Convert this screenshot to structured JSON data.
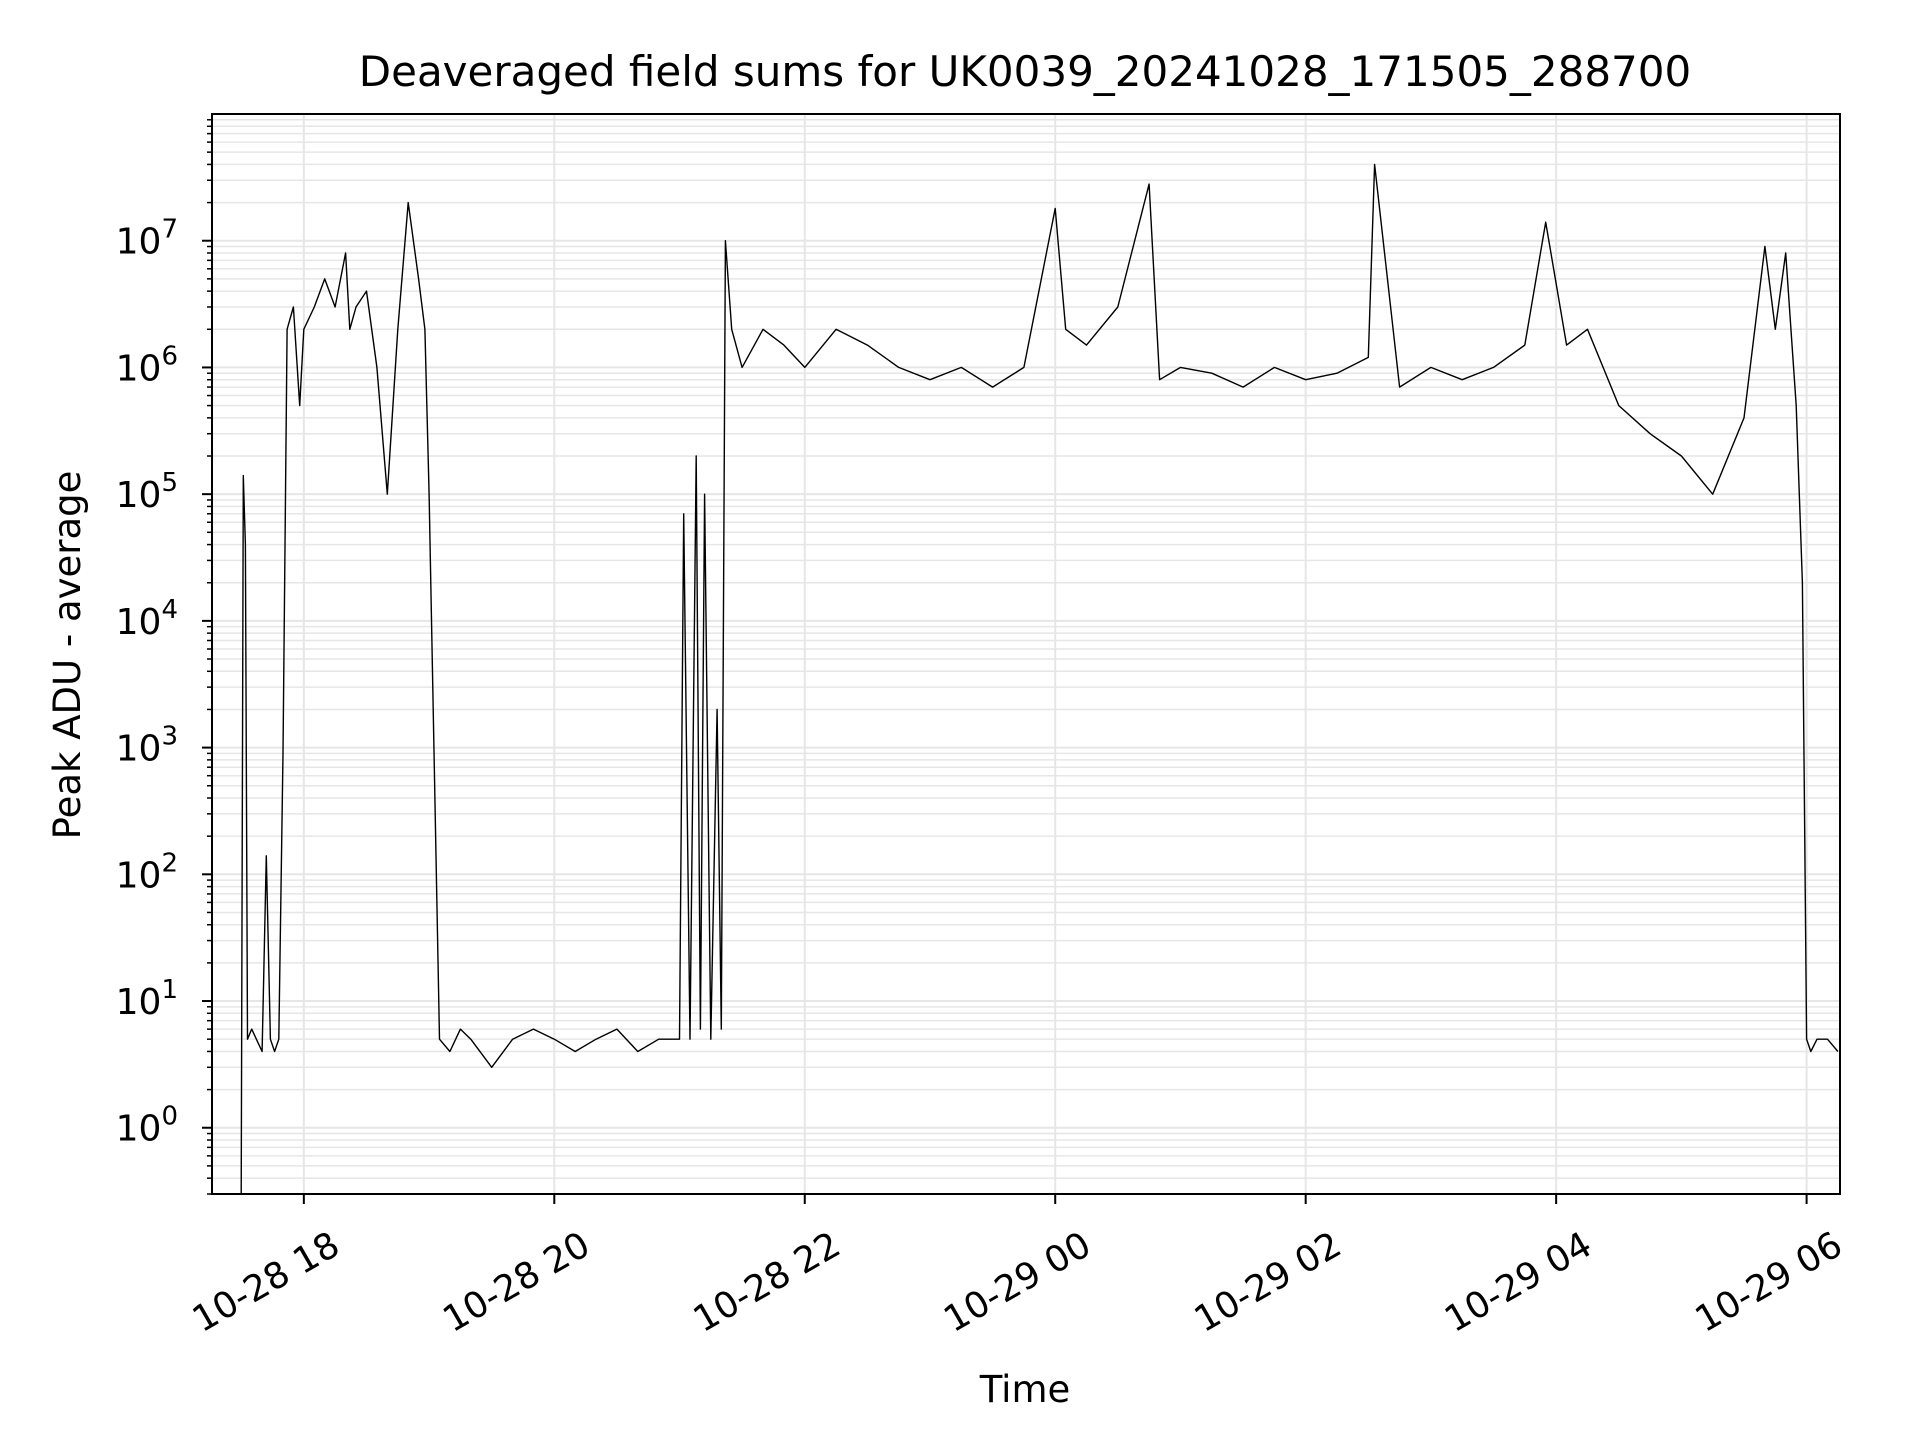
{
  "chart_data": {
    "type": "line",
    "title": "Deaveraged field sums for UK0039_20241028_171505_288700",
    "xlabel": "Time",
    "ylabel": "Peak ADU - average",
    "yscale": "log",
    "ylim": [
      0.3,
      100000000
    ],
    "xlim": [
      "2024-10-28 17:16",
      "2024-10-29 06:16"
    ],
    "grid": true,
    "x_tick_labels": [
      "10-28 18",
      "10-28 20",
      "10-28 22",
      "10-29 00",
      "10-29 02",
      "10-29 04",
      "10-29 06"
    ],
    "x_tick_times": [
      "2024-10-28 18:00",
      "2024-10-28 20:00",
      "2024-10-28 22:00",
      "2024-10-29 00:00",
      "2024-10-29 02:00",
      "2024-10-29 04:00",
      "2024-10-29 06:00"
    ],
    "y_tick_labels": [
      {
        "base": "10",
        "exp": "0",
        "value": 1
      },
      {
        "base": "10",
        "exp": "1",
        "value": 10
      },
      {
        "base": "10",
        "exp": "2",
        "value": 100
      },
      {
        "base": "10",
        "exp": "3",
        "value": 1000
      },
      {
        "base": "10",
        "exp": "4",
        "value": 10000
      },
      {
        "base": "10",
        "exp": "5",
        "value": 100000
      },
      {
        "base": "10",
        "exp": "6",
        "value": 1000000
      },
      {
        "base": "10",
        "exp": "7",
        "value": 10000000
      }
    ],
    "line_color": "#000000",
    "series": [
      {
        "x": [
          "2024-10-28 17:30",
          "2024-10-28 17:31",
          "2024-10-28 17:32",
          "2024-10-28 17:33",
          "2024-10-28 17:35",
          "2024-10-28 17:40",
          "2024-10-28 17:42",
          "2024-10-28 17:44",
          "2024-10-28 17:46",
          "2024-10-28 17:48",
          "2024-10-28 17:50",
          "2024-10-28 17:52",
          "2024-10-28 17:55",
          "2024-10-28 17:58",
          "2024-10-28 18:00",
          "2024-10-28 18:05",
          "2024-10-28 18:10",
          "2024-10-28 18:15",
          "2024-10-28 18:20",
          "2024-10-28 18:22",
          "2024-10-28 18:25",
          "2024-10-28 18:30",
          "2024-10-28 18:35",
          "2024-10-28 18:40",
          "2024-10-28 18:45",
          "2024-10-28 18:50",
          "2024-10-28 18:55",
          "2024-10-28 18:58",
          "2024-10-28 19:00",
          "2024-10-28 19:05",
          "2024-10-28 19:10",
          "2024-10-28 19:15",
          "2024-10-28 19:20",
          "2024-10-28 19:30",
          "2024-10-28 19:40",
          "2024-10-28 19:50",
          "2024-10-28 20:00",
          "2024-10-28 20:10",
          "2024-10-28 20:20",
          "2024-10-28 20:30",
          "2024-10-28 20:40",
          "2024-10-28 20:50",
          "2024-10-28 21:00",
          "2024-10-28 21:02",
          "2024-10-28 21:05",
          "2024-10-28 21:08",
          "2024-10-28 21:10",
          "2024-10-28 21:12",
          "2024-10-28 21:15",
          "2024-10-28 21:18",
          "2024-10-28 21:20",
          "2024-10-28 21:22",
          "2024-10-28 21:25",
          "2024-10-28 21:30",
          "2024-10-28 21:40",
          "2024-10-28 21:50",
          "2024-10-28 22:00",
          "2024-10-28 22:15",
          "2024-10-28 22:30",
          "2024-10-28 22:45",
          "2024-10-28 23:00",
          "2024-10-28 23:15",
          "2024-10-28 23:30",
          "2024-10-28 23:45",
          "2024-10-29 00:00",
          "2024-10-29 00:05",
          "2024-10-29 00:15",
          "2024-10-29 00:30",
          "2024-10-29 00:45",
          "2024-10-29 00:50",
          "2024-10-29 01:00",
          "2024-10-29 01:15",
          "2024-10-29 01:30",
          "2024-10-29 01:45",
          "2024-10-29 02:00",
          "2024-10-29 02:15",
          "2024-10-29 02:30",
          "2024-10-29 02:33",
          "2024-10-29 02:45",
          "2024-10-29 03:00",
          "2024-10-29 03:15",
          "2024-10-29 03:30",
          "2024-10-29 03:45",
          "2024-10-29 03:55",
          "2024-10-29 04:05",
          "2024-10-29 04:15",
          "2024-10-29 04:30",
          "2024-10-29 04:45",
          "2024-10-29 05:00",
          "2024-10-29 05:15",
          "2024-10-29 05:30",
          "2024-10-29 05:40",
          "2024-10-29 05:45",
          "2024-10-29 05:50",
          "2024-10-29 05:55",
          "2024-10-29 05:58",
          "2024-10-29 06:00",
          "2024-10-29 06:02",
          "2024-10-29 06:05",
          "2024-10-29 06:10",
          "2024-10-29 06:15"
        ],
        "y": [
          0.3,
          140000,
          40000,
          5,
          6,
          4,
          140,
          5,
          4,
          5,
          900,
          2000000,
          3000000,
          500000,
          2000000,
          3000000,
          5000000,
          3000000,
          8000000,
          2000000,
          3000000,
          4000000,
          1000000,
          100000,
          2000000,
          20000000,
          5000000,
          2000000,
          100000,
          5,
          4,
          6,
          5,
          3,
          5,
          6,
          5,
          4,
          5,
          6,
          4,
          5,
          5,
          70000,
          5,
          200000,
          6,
          100000,
          5,
          2000,
          6,
          10000000,
          2000000,
          1000000,
          2000000,
          1500000,
          1000000,
          2000000,
          1500000,
          1000000,
          800000,
          1000000,
          700000,
          1000000,
          18000000,
          2000000,
          1500000,
          3000000,
          28000000,
          800000,
          1000000,
          900000,
          700000,
          1000000,
          800000,
          900000,
          1200000,
          40000000,
          700000,
          1000000,
          800000,
          1000000,
          1500000,
          14000000,
          1500000,
          2000000,
          500000,
          300000,
          200000,
          100000,
          400000,
          9000000,
          2000000,
          8000000,
          500000,
          20000,
          5,
          4,
          5,
          5,
          4
        ]
      }
    ]
  }
}
